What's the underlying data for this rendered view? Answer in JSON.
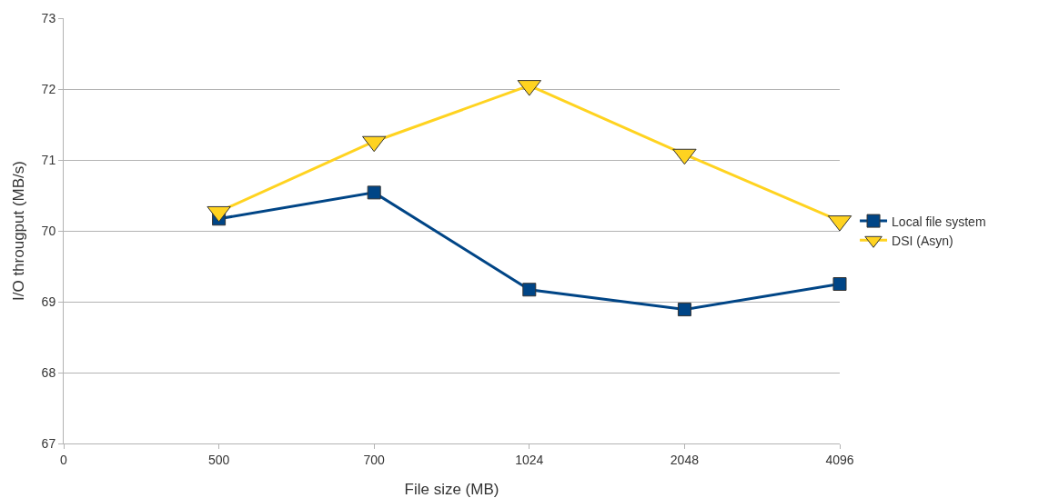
{
  "chart_data": {
    "type": "line",
    "xlabel": "File size (MB)",
    "ylabel": "I/O througput (MB/s)",
    "categories": [
      "0",
      "500",
      "700",
      "1024",
      "2048",
      "4096"
    ],
    "series": [
      {
        "name": "Local file system",
        "color": "#004586",
        "marker": "square",
        "values": [
          null,
          70.17,
          70.54,
          69.17,
          68.89,
          69.25
        ]
      },
      {
        "name": "DSI (Asyn)",
        "color": "#ffd320",
        "marker": "triangle",
        "values": [
          null,
          70.27,
          71.26,
          72.05,
          71.08,
          70.14
        ]
      }
    ],
    "ylim": [
      67,
      73
    ],
    "yticks": [
      67,
      68,
      69,
      70,
      71,
      72,
      73
    ],
    "grid": "y",
    "legend": "right"
  }
}
